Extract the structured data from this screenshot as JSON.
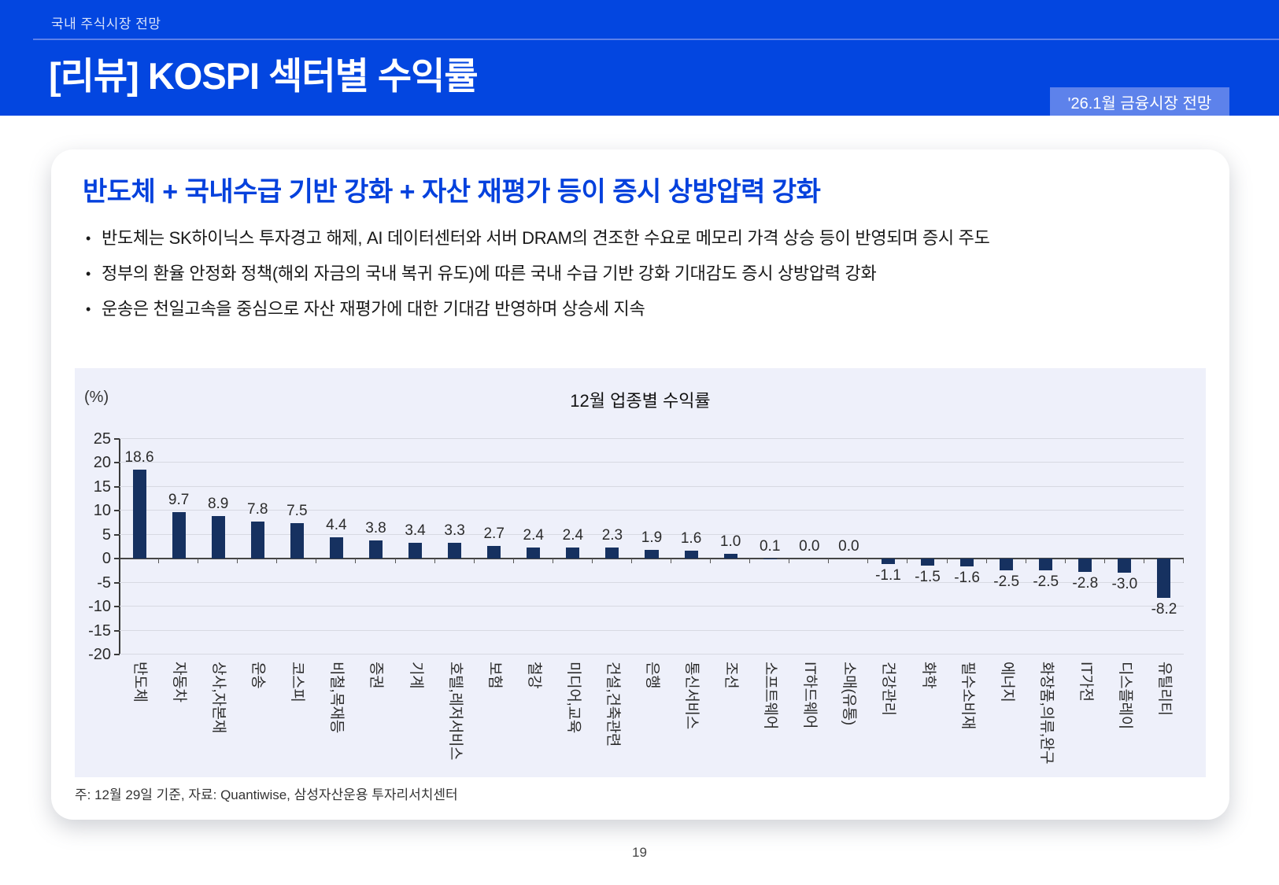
{
  "header": {
    "eyebrow": "국내 주식시장 전망",
    "title": "[리뷰] KOSPI 섹터별 수익률",
    "badge": "'26.1월 금융시장 전망"
  },
  "card": {
    "heading": "반도체 + 국내수급 기반 강화 + 자산 재평가 등이 증시 상방압력 강화",
    "bullets": [
      "반도체는 SK하이닉스 투자경고 해제, AI 데이터센터와 서버 DRAM의 견조한 수요로 메모리 가격 상승 등이 반영되며 증시 주도",
      "정부의 환율 안정화 정책(해외 자금의 국내 복귀 유도)에 따른 국내 수급 기반 강화 기대감도 증시 상방압력 강화",
      "운송은 천일고속을 중심으로 자산 재평가에 대한 기대감 반영하며 상승세 지속"
    ],
    "note": "주: 12월 29일 기준, 자료: Quantiwise, 삼성자산운용 투자리서치센터"
  },
  "chart_data": {
    "type": "bar",
    "title": "12월 업종별 수익률",
    "unit_label": "(%)",
    "categories": [
      "반도체",
      "자동차",
      "상사,자본재",
      "운송",
      "코스피",
      "비철,목재등",
      "증권",
      "기계",
      "호텔,레저서비스",
      "보험",
      "철강",
      "미디어,교육",
      "건설,건축관련",
      "은행",
      "통신서비스",
      "조선",
      "소프트웨어",
      "IT하드웨어",
      "소매(유통)",
      "건강관리",
      "화학",
      "필수소비재",
      "에너지",
      "화장품,의류,완구",
      "IT가전",
      "디스플레이",
      "유틸리티"
    ],
    "values": [
      18.6,
      9.7,
      8.9,
      7.8,
      7.5,
      4.4,
      3.8,
      3.4,
      3.3,
      2.7,
      2.4,
      2.4,
      2.3,
      1.9,
      1.6,
      1.0,
      0.1,
      0.0,
      0.0,
      -1.1,
      -1.5,
      -1.6,
      -2.5,
      -2.5,
      -2.8,
      -3.0,
      -8.2
    ],
    "ylim": [
      -20,
      25
    ],
    "ytick_step": 5,
    "grid": true,
    "legend": "none"
  },
  "colors": {
    "header_blue": "#0346e0",
    "badge_blue": "#5d82eb",
    "heading_blue": "#0441dd",
    "bar_navy": "#163160",
    "chart_bg": "#eef0fa"
  },
  "footer": {
    "page_number": "19"
  }
}
